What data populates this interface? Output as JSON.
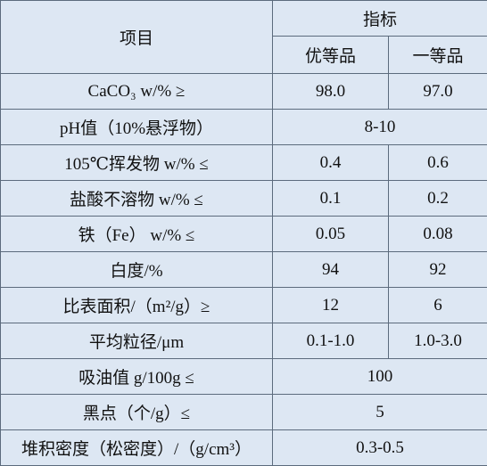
{
  "table": {
    "header": {
      "item": "项目",
      "spec": "指标",
      "grades": [
        "优等品",
        "一等品"
      ]
    },
    "rows": [
      [
        "CaCO₃ w/% ≥",
        "98.0",
        "97.0"
      ],
      [
        "pH值（10%悬浮物）",
        "8-10"
      ],
      [
        "105℃挥发物 w/% ≤",
        "0.4",
        "0.6"
      ],
      [
        "盐酸不溶物 w/% ≤",
        "0.1",
        "0.2"
      ],
      [
        "铁（Fe） w/% ≤",
        "0.05",
        "0.08"
      ],
      [
        "白度/%",
        "94",
        "92"
      ],
      [
        "比表面积/（m²/g）≥",
        "12",
        "6"
      ],
      [
        "平均粒径/μm",
        "0.1-1.0",
        "1.0-3.0"
      ],
      [
        "吸油值 g/100g ≤",
        "100"
      ],
      [
        "黑点（个/g）≤",
        "5"
      ],
      [
        "堆积密度（松密度）/（g/cm³）",
        "0.3-0.5"
      ]
    ]
  }
}
